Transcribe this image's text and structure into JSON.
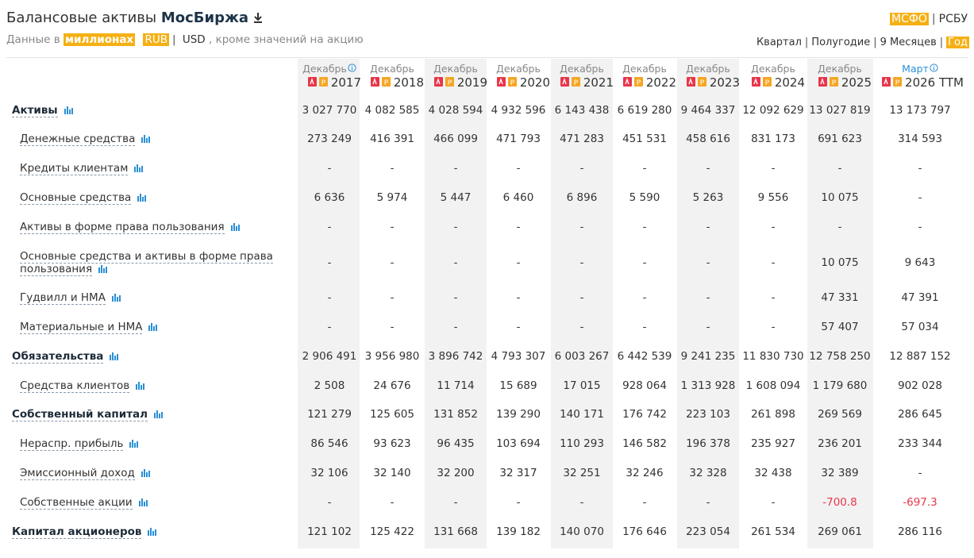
{
  "header": {
    "title": "Балансовые активы",
    "company": "МосБиржа",
    "units_prefix": "Данные в",
    "units": "миллионах",
    "currencies": [
      "RUB",
      "USD"
    ],
    "units_suffix": ", кроме значений на акцию",
    "standards": [
      "МСФО",
      "РСБУ"
    ],
    "periods": [
      "Квартал",
      "Полугодие",
      "9 Месяцев",
      "Год"
    ]
  },
  "table": {
    "columns": [
      {
        "month": "Декабрь",
        "year": "2017"
      },
      {
        "month": "Декабрь",
        "year": "2018"
      },
      {
        "month": "Декабрь",
        "year": "2019"
      },
      {
        "month": "Декабрь",
        "year": "2020"
      },
      {
        "month": "Декабрь",
        "year": "2021"
      },
      {
        "month": "Декабрь",
        "year": "2022"
      },
      {
        "month": "Декабрь",
        "year": "2023"
      },
      {
        "month": "Декабрь",
        "year": "2024"
      },
      {
        "month": "Декабрь",
        "year": "2025"
      },
      {
        "month": "Март",
        "year": "2026 TTM"
      }
    ],
    "rows": [
      {
        "label": "Активы",
        "bold": true,
        "values": [
          "3 027 770",
          "4 082 585",
          "4 028 594",
          "4 932 596",
          "6 143 438",
          "6 619 280",
          "9 464 337",
          "12 092 629",
          "13 027 819",
          "13 173 797"
        ]
      },
      {
        "label": "Денежные средства",
        "bold": false,
        "values": [
          "273 249",
          "416 391",
          "466 099",
          "471 793",
          "471 283",
          "451 531",
          "458 616",
          "831 173",
          "691 623",
          "314 593"
        ]
      },
      {
        "label": "Кредиты клиентам",
        "bold": false,
        "values": [
          "-",
          "-",
          "-",
          "-",
          "-",
          "-",
          "-",
          "-",
          "-",
          "-"
        ]
      },
      {
        "label": "Основные средства",
        "bold": false,
        "values": [
          "6 636",
          "5 974",
          "5 447",
          "6 460",
          "6 896",
          "5 590",
          "5 263",
          "9 556",
          "10 075",
          "-"
        ]
      },
      {
        "label": "Активы в форме права пользования",
        "bold": false,
        "values": [
          "-",
          "-",
          "-",
          "-",
          "-",
          "-",
          "-",
          "-",
          "-",
          "-"
        ]
      },
      {
        "label": "Основные средства и активы в форме права пользования",
        "bold": false,
        "values": [
          "-",
          "-",
          "-",
          "-",
          "-",
          "-",
          "-",
          "-",
          "10 075",
          "9 643"
        ]
      },
      {
        "label": "Гудвилл и НМА",
        "bold": false,
        "values": [
          "-",
          "-",
          "-",
          "-",
          "-",
          "-",
          "-",
          "-",
          "47 331",
          "47 391"
        ]
      },
      {
        "label": "Материальные и НМА",
        "bold": false,
        "values": [
          "-",
          "-",
          "-",
          "-",
          "-",
          "-",
          "-",
          "-",
          "57 407",
          "57 034"
        ]
      },
      {
        "label": "Обязательства",
        "bold": true,
        "values": [
          "2 906 491",
          "3 956 980",
          "3 896 742",
          "4 793 307",
          "6 003 267",
          "6 442 539",
          "9 241 235",
          "11 830 730",
          "12 758 250",
          "12 887 152"
        ]
      },
      {
        "label": "Средства клиентов",
        "bold": false,
        "values": [
          "2 508",
          "24 676",
          "11 714",
          "15 689",
          "17 015",
          "928 064",
          "1 313 928",
          "1 608 094",
          "1 179 680",
          "902 028"
        ]
      },
      {
        "label": "Собственный капитал",
        "bold": true,
        "values": [
          "121 279",
          "125 605",
          "131 852",
          "139 290",
          "140 171",
          "176 742",
          "223 103",
          "261 898",
          "269 569",
          "286 645"
        ]
      },
      {
        "label": "Нераспр. прибыль",
        "bold": false,
        "values": [
          "86 546",
          "93 623",
          "96 435",
          "103 694",
          "110 293",
          "146 582",
          "196 378",
          "235 927",
          "236 201",
          "233 344"
        ]
      },
      {
        "label": "Эмиссионный доход",
        "bold": false,
        "values": [
          "32 106",
          "32 140",
          "32 200",
          "32 317",
          "32 251",
          "32 246",
          "32 328",
          "32 438",
          "32 389",
          "-"
        ]
      },
      {
        "label": "Собственные акции",
        "bold": false,
        "values": [
          "-",
          "-",
          "-",
          "-",
          "-",
          "-",
          "-",
          "-",
          "-700.8",
          "-697.3"
        ]
      },
      {
        "label": "Капитал акционеров",
        "bold": true,
        "values": [
          "121 102",
          "125 422",
          "131 668",
          "139 182",
          "140 070",
          "176 646",
          "223 054",
          "261 534",
          "269 061",
          "286 116"
        ]
      }
    ]
  }
}
